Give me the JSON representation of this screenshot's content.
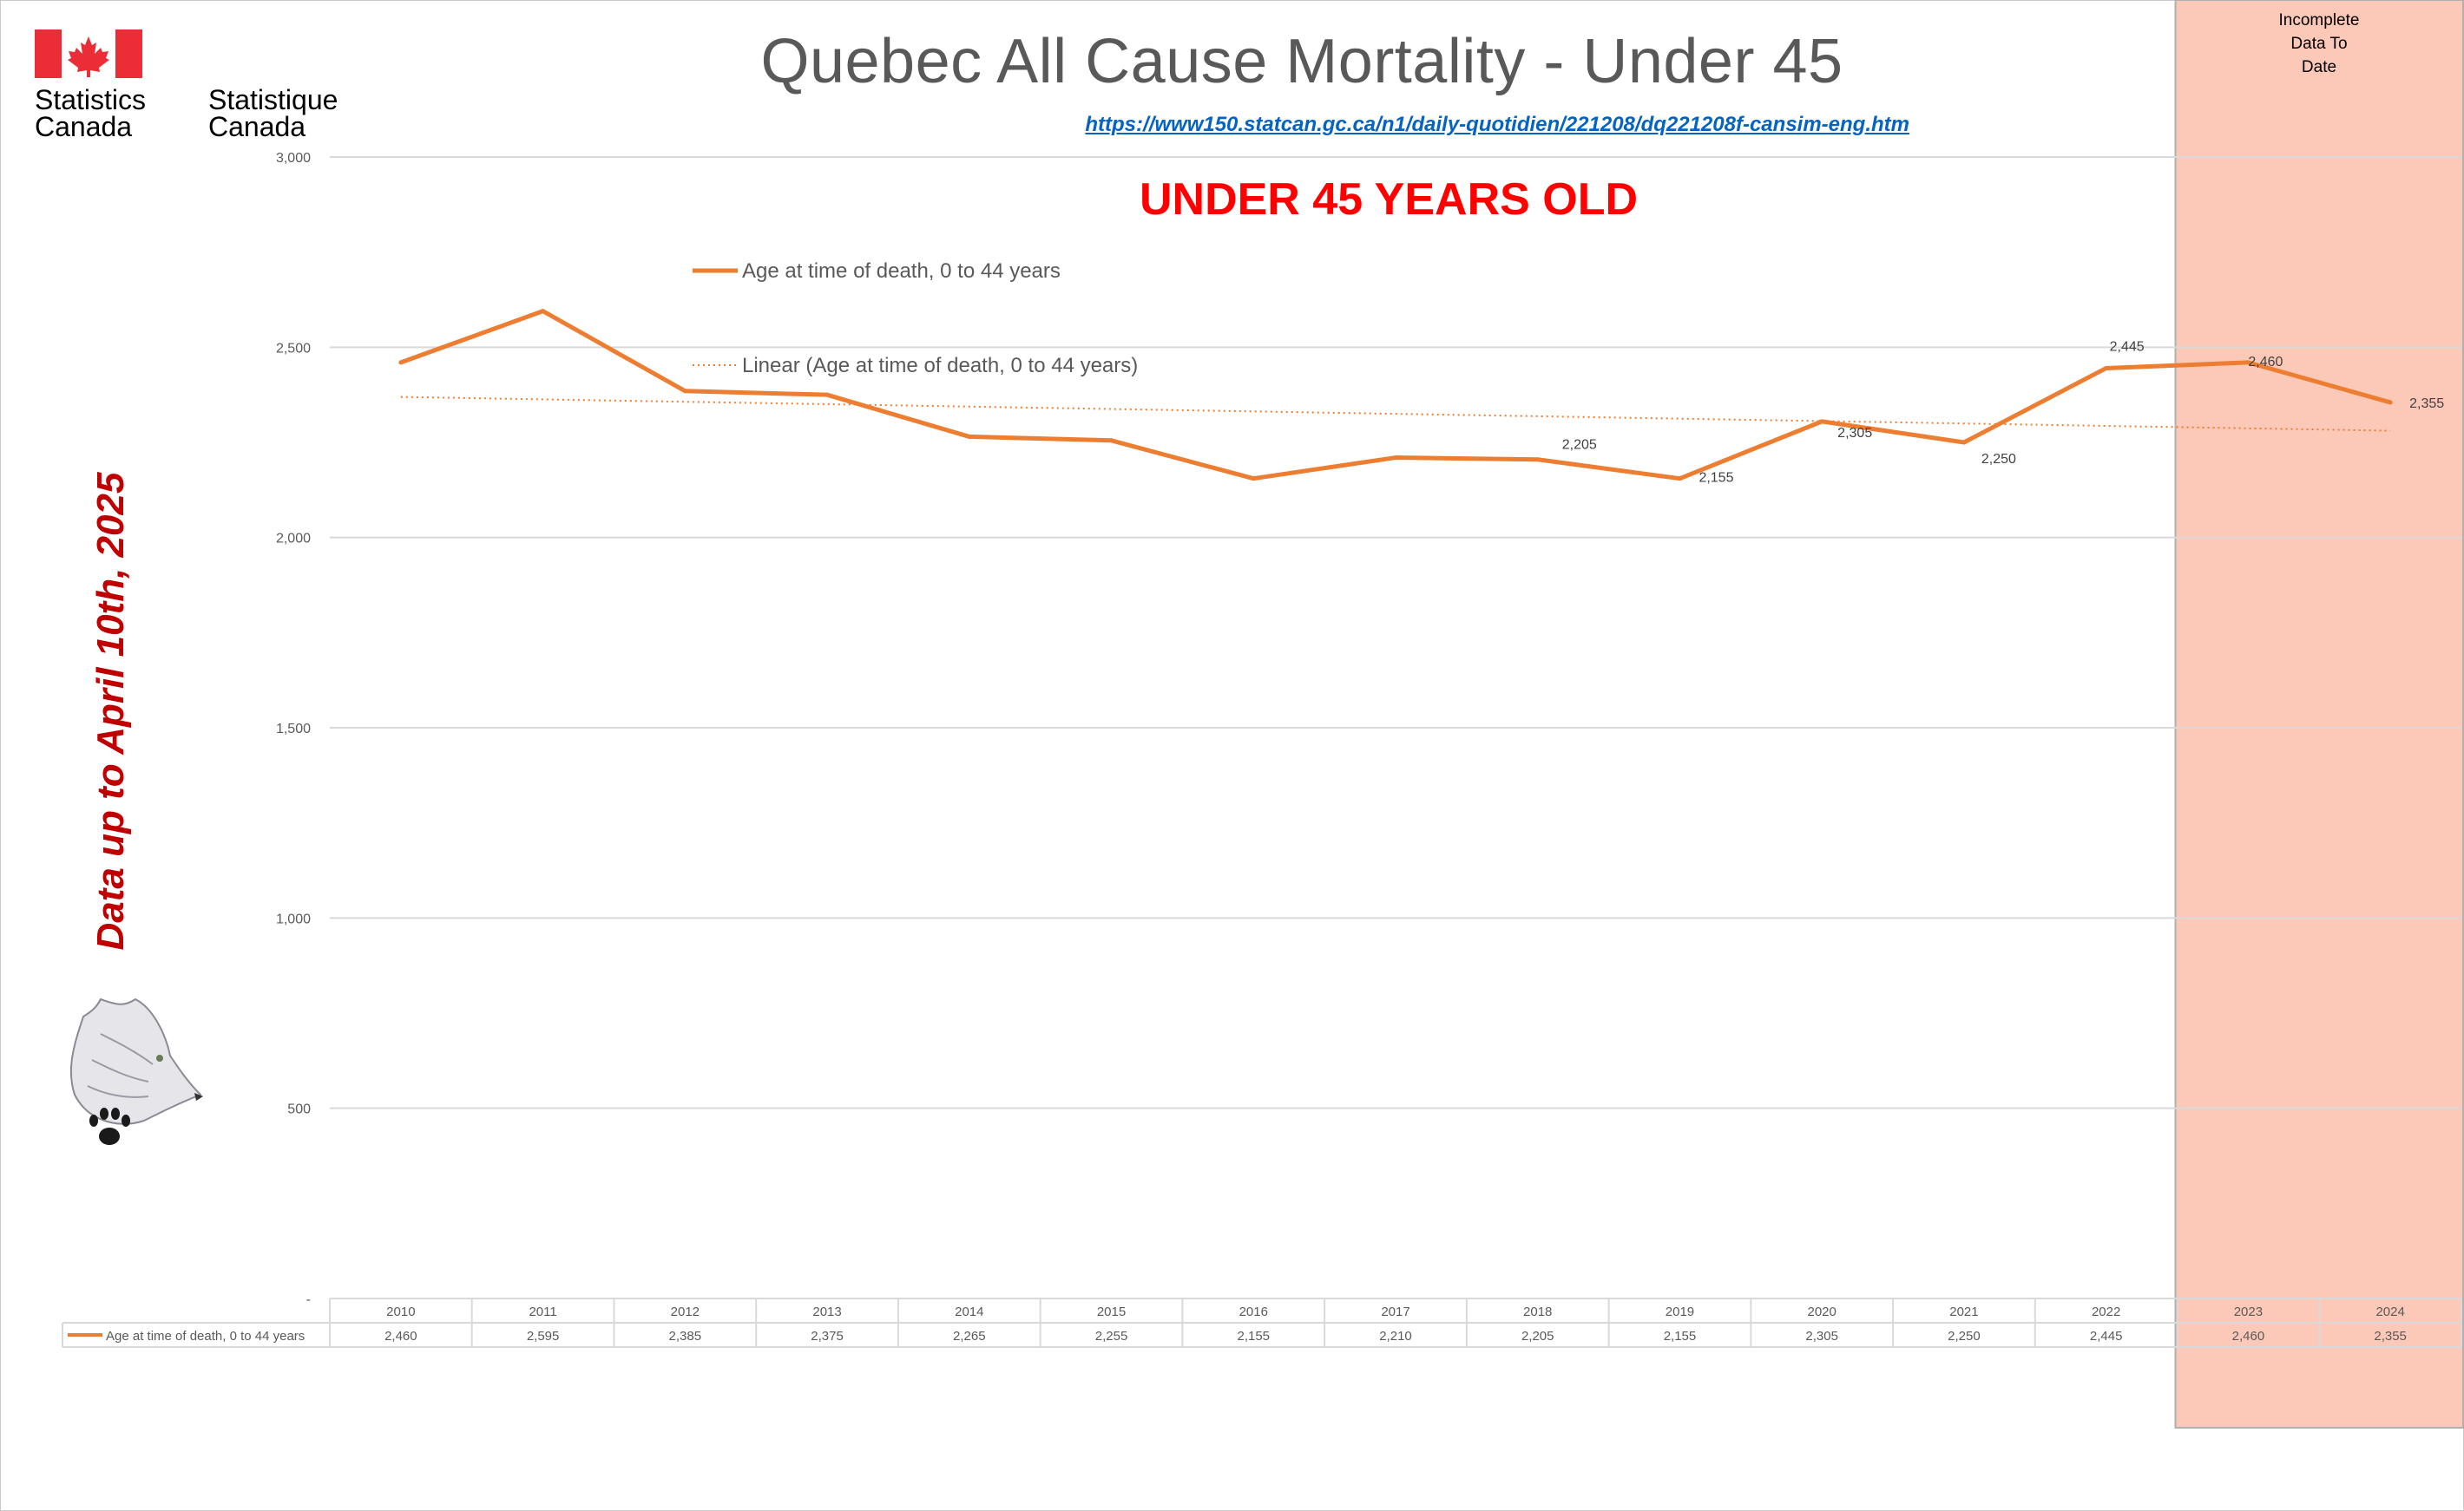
{
  "header": {
    "title": "Quebec All Cause Mortality - Under 45",
    "link": "https://www150.statcan.gc.ca/n1/daily-quotidien/221208/dq221208f-cansim-eng.htm",
    "subtitle": "UNDER 45 YEARS OLD",
    "side_note": "Data up to April 10th, 2025",
    "incomplete_label": "Incomplete\nData To\nDate"
  },
  "logo": {
    "english": "Statistics\nCanada",
    "french": "Statistique\nCanada"
  },
  "colors": {
    "series": "#ed7d31",
    "trend": "#ed7d31",
    "highlight": "#fcc9b8",
    "title": "#595959",
    "subtitle": "#ff0000",
    "side_note": "#c00000",
    "link": "#0563c1",
    "flag_red": "#eb2d37"
  },
  "chart_data": {
    "type": "line",
    "title": "Quebec All Cause Mortality - Under 45",
    "categories": [
      "2010",
      "2011",
      "2012",
      "2013",
      "2014",
      "2015",
      "2016",
      "2017",
      "2018",
      "2019",
      "2020",
      "2021",
      "2022",
      "2023",
      "2024"
    ],
    "series": [
      {
        "name": "Age at time of death, 0 to 44 years",
        "values": [
          2460,
          2595,
          2385,
          2375,
          2265,
          2255,
          2155,
          2210,
          2205,
          2155,
          2305,
          2250,
          2445,
          2460,
          2355
        ],
        "display": [
          "2,460",
          "2,595",
          "2,385",
          "2,375",
          "2,265",
          "2,255",
          "2,155",
          "2,210",
          "2,205",
          "2,155",
          "2,305",
          "2,250",
          "2,445",
          "2,460",
          "2,355"
        ]
      }
    ],
    "trendline": {
      "name": "Linear (Age at time of death, 0 to 44 years)",
      "type": "linear"
    },
    "ylim": [
      0,
      3000
    ],
    "y_ticks": [
      0,
      500,
      1000,
      1500,
      2000,
      2500,
      3000
    ],
    "y_tick_labels": [
      "-",
      "500",
      "1,000",
      "1,500",
      "2,000",
      "2,500",
      "3,000"
    ],
    "labeled_points": [
      "2018",
      "2019",
      "2020",
      "2021",
      "2022",
      "2023",
      "2024"
    ],
    "highlighted_categories": [
      "2023",
      "2024"
    ],
    "legend": "top-left inside plot",
    "grid": true,
    "data_table": true
  }
}
